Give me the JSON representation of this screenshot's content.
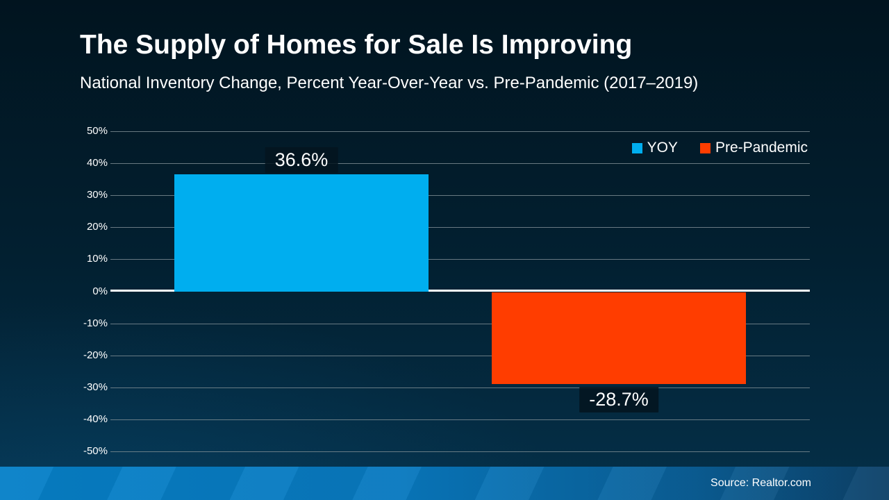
{
  "page": {
    "title": "The Supply of Homes for Sale Is Improving",
    "subtitle": "National Inventory Change, Percent Year-Over-Year vs. Pre-Pandemic (2017–2019)",
    "source": "Source: Realtor.com"
  },
  "chart_data": {
    "type": "bar",
    "title": "The Supply of Homes for Sale Is Improving",
    "subtitle": "National Inventory Change, Percent Year-Over-Year vs. Pre-Pandemic (2017–2019)",
    "categories": [
      "YOY",
      "Pre-Pandemic"
    ],
    "values": [
      36.6,
      -28.7
    ],
    "value_labels": [
      "36.6%",
      "-28.7%"
    ],
    "series_colors": [
      "#00AEEF",
      "#FF3D00"
    ],
    "ylim": [
      -50,
      50
    ],
    "ytick_step": 10,
    "yticks": [
      50,
      40,
      30,
      20,
      10,
      0,
      -10,
      -20,
      -30,
      -40,
      -50
    ],
    "ytick_labels": [
      "50%",
      "40%",
      "30%",
      "20%",
      "10%",
      "0%",
      "-10%",
      "-20%",
      "-30%",
      "-40%",
      "-50%"
    ],
    "grid": true,
    "legend": {
      "position": "top-right",
      "entries": [
        {
          "label": "YOY",
          "color": "#00AEEF"
        },
        {
          "label": "Pre-Pandemic",
          "color": "#FF3D00"
        }
      ]
    },
    "source": "Source: Realtor.com",
    "colors": {
      "background_top": "#01141F",
      "background_bottom": "#053049",
      "gridline": "#7A8A91",
      "zero_line": "#FFFFFF",
      "text": "#FFFFFF",
      "footer_left": "#0680C8",
      "footer_right": "#0D4168",
      "label_box": "#03141F"
    }
  }
}
